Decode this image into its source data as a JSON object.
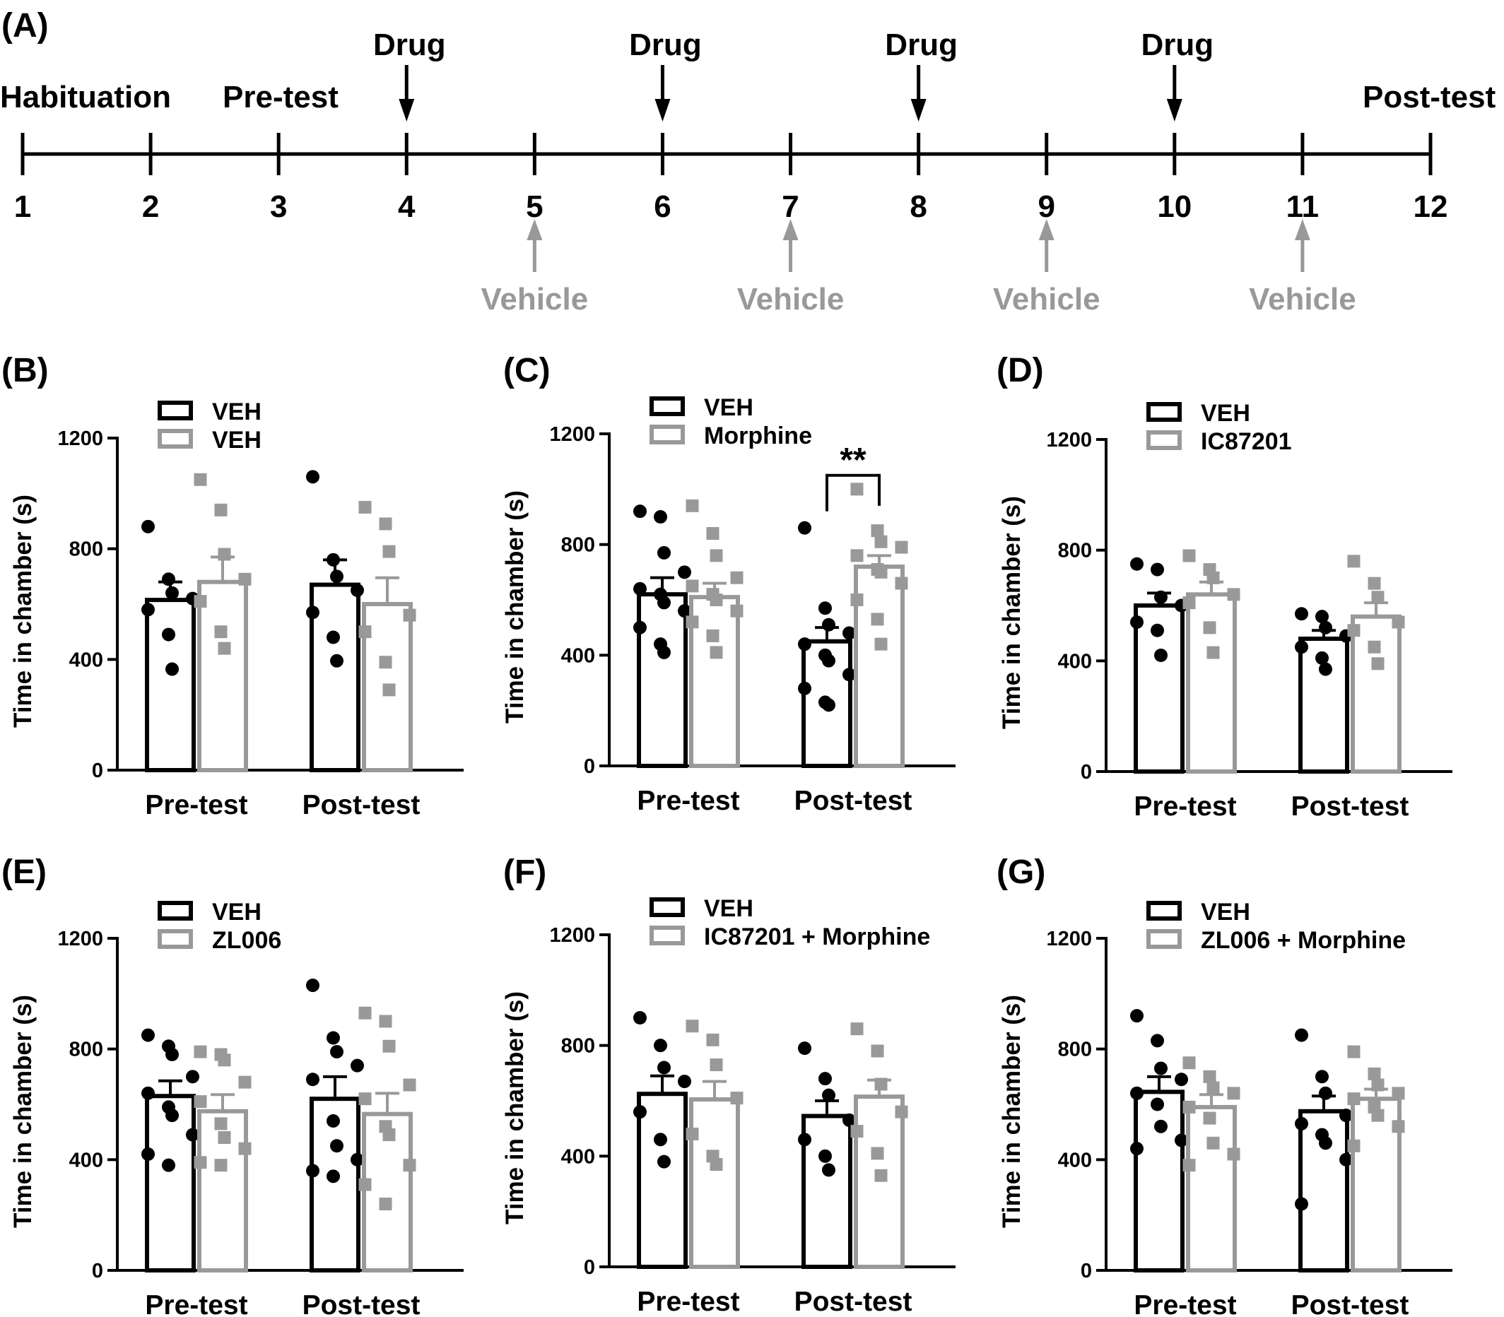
{
  "colors": {
    "black": "#000000",
    "gray": "#999999"
  },
  "timeline": {
    "panel_label": "(A)",
    "days": [
      "1",
      "2",
      "3",
      "4",
      "5",
      "6",
      "7",
      "8",
      "9",
      "10",
      "11",
      "12"
    ],
    "labels": {
      "habituation": "Habituation",
      "pretest": "Pre-test",
      "posttest": "Post-test"
    },
    "drug_label": "Drug",
    "vehicle_label": "Vehicle",
    "drug_days": [
      4,
      6,
      8,
      10
    ],
    "vehicle_days": [
      5,
      7,
      9,
      11
    ]
  },
  "chart_data": [
    {
      "panel": "(B)",
      "type": "bar",
      "categories": [
        "Pre-test",
        "Post-test"
      ],
      "ylabel": "Time in chamber (s)",
      "ylim": [
        0,
        1200
      ],
      "yticks": [
        0,
        400,
        800,
        1200
      ],
      "significance": "",
      "series": [
        {
          "name": "VEH",
          "color": "#000000",
          "marker": "circle",
          "values": [
            615,
            670
          ],
          "sem": [
            65,
            90
          ],
          "points": [
            [
              880,
              690,
              640,
              620,
              580,
              490,
              365
            ],
            [
              1060,
              760,
              700,
              650,
              570,
              480,
              395
            ]
          ]
        },
        {
          "name": "VEH",
          "color": "#999999",
          "marker": "square",
          "values": [
            680,
            600
          ],
          "sem": [
            90,
            95
          ],
          "points": [
            [
              1050,
              940,
              780,
              690,
              610,
              500,
              440
            ],
            [
              950,
              890,
              790,
              560,
              500,
              390,
              290
            ]
          ]
        }
      ]
    },
    {
      "panel": "(C)",
      "type": "bar",
      "categories": [
        "Pre-test",
        "Post-test"
      ],
      "ylabel": "Time in chamber (s)",
      "ylim": [
        0,
        1200
      ],
      "yticks": [
        0,
        400,
        800,
        1200
      ],
      "significance": "**",
      "series": [
        {
          "name": "VEH",
          "color": "#000000",
          "marker": "circle",
          "values": [
            620,
            450
          ],
          "sem": [
            60,
            50
          ],
          "points": [
            [
              920,
              900,
              770,
              700,
              640,
              620,
              590,
              560,
              500,
              440,
              410
            ],
            [
              860,
              570,
              510,
              480,
              440,
              400,
              380,
              330,
              280,
              230,
              220
            ]
          ]
        },
        {
          "name": "Morphine",
          "color": "#999999",
          "marker": "square",
          "values": [
            610,
            720
          ],
          "sem": [
            50,
            40
          ],
          "points": [
            [
              940,
              840,
              760,
              680,
              650,
              620,
              600,
              560,
              520,
              470,
              410
            ],
            [
              1000,
              850,
              810,
              790,
              760,
              710,
              700,
              660,
              600,
              530,
              440
            ]
          ]
        }
      ]
    },
    {
      "panel": "(D)",
      "type": "bar",
      "categories": [
        "Pre-test",
        "Post-test"
      ],
      "ylabel": "Time in chamber (s)",
      "ylim": [
        0,
        1200
      ],
      "yticks": [
        0,
        400,
        800,
        1200
      ],
      "significance": "",
      "series": [
        {
          "name": "VEH",
          "color": "#000000",
          "marker": "circle",
          "values": [
            600,
            480
          ],
          "sem": [
            45,
            30
          ],
          "points": [
            [
              750,
              730,
              630,
              600,
              540,
              510,
              420
            ],
            [
              570,
              560,
              520,
              490,
              450,
              410,
              370
            ]
          ]
        },
        {
          "name": "IC87201",
          "color": "#999999",
          "marker": "square",
          "values": [
            640,
            560
          ],
          "sem": [
            45,
            50
          ],
          "points": [
            [
              780,
              730,
              700,
              640,
              610,
              520,
              430
            ],
            [
              760,
              680,
              630,
              540,
              510,
              450,
              390
            ]
          ]
        }
      ]
    },
    {
      "panel": "(E)",
      "type": "bar",
      "categories": [
        "Pre-test",
        "Post-test"
      ],
      "ylabel": "Time in chamber (s)",
      "ylim": [
        0,
        1200
      ],
      "yticks": [
        0,
        400,
        800,
        1200
      ],
      "significance": "",
      "series": [
        {
          "name": "VEH",
          "color": "#000000",
          "marker": "circle",
          "values": [
            630,
            620
          ],
          "sem": [
            55,
            80
          ],
          "points": [
            [
              850,
              810,
              780,
              700,
              640,
              590,
              560,
              490,
              420,
              380
            ],
            [
              1030,
              840,
              790,
              740,
              690,
              540,
              450,
              400,
              360,
              340
            ]
          ]
        },
        {
          "name": "ZL006",
          "color": "#999999",
          "marker": "square",
          "values": [
            575,
            565
          ],
          "sem": [
            60,
            75
          ],
          "points": [
            [
              790,
              780,
              760,
              680,
              610,
              530,
              480,
              440,
              390,
              380
            ],
            [
              930,
              900,
              810,
              670,
              620,
              520,
              490,
              380,
              310,
              240
            ]
          ]
        }
      ]
    },
    {
      "panel": "(F)",
      "type": "bar",
      "categories": [
        "Pre-test",
        "Post-test"
      ],
      "ylabel": "Time in chamber (s)",
      "ylim": [
        0,
        1200
      ],
      "yticks": [
        0,
        400,
        800,
        1200
      ],
      "significance": "",
      "series": [
        {
          "name": "VEH",
          "color": "#000000",
          "marker": "circle",
          "values": [
            625,
            545
          ],
          "sem": [
            65,
            55
          ],
          "points": [
            [
              900,
              800,
              720,
              670,
              560,
              460,
              380
            ],
            [
              790,
              680,
              620,
              530,
              460,
              400,
              350
            ]
          ]
        },
        {
          "name": "IC87201 + Morphine",
          "color": "#999999",
          "marker": "square",
          "values": [
            605,
            615
          ],
          "sem": [
            65,
            60
          ],
          "points": [
            [
              870,
              820,
              730,
              610,
              480,
              400,
              370
            ],
            [
              860,
              780,
              660,
              560,
              490,
              410,
              330
            ]
          ]
        }
      ]
    },
    {
      "panel": "(G)",
      "type": "bar",
      "categories": [
        "Pre-test",
        "Post-test"
      ],
      "ylabel": "Time in chamber (s)",
      "ylim": [
        0,
        1200
      ],
      "yticks": [
        0,
        400,
        800,
        1200
      ],
      "significance": "",
      "series": [
        {
          "name": "VEH",
          "color": "#000000",
          "marker": "circle",
          "values": [
            645,
            575
          ],
          "sem": [
            55,
            55
          ],
          "points": [
            [
              920,
              830,
              730,
              690,
              640,
              600,
              520,
              470,
              440
            ],
            [
              850,
              700,
              640,
              560,
              530,
              490,
              460,
              400,
              240
            ]
          ]
        },
        {
          "name": "ZL006 + Morphine",
          "color": "#999999",
          "marker": "square",
          "values": [
            590,
            620
          ],
          "sem": [
            45,
            35
          ],
          "points": [
            [
              750,
              700,
              660,
              640,
              590,
              550,
              460,
              420,
              380
            ],
            [
              790,
              710,
              670,
              640,
              620,
              590,
              560,
              520,
              450
            ]
          ]
        }
      ]
    }
  ]
}
